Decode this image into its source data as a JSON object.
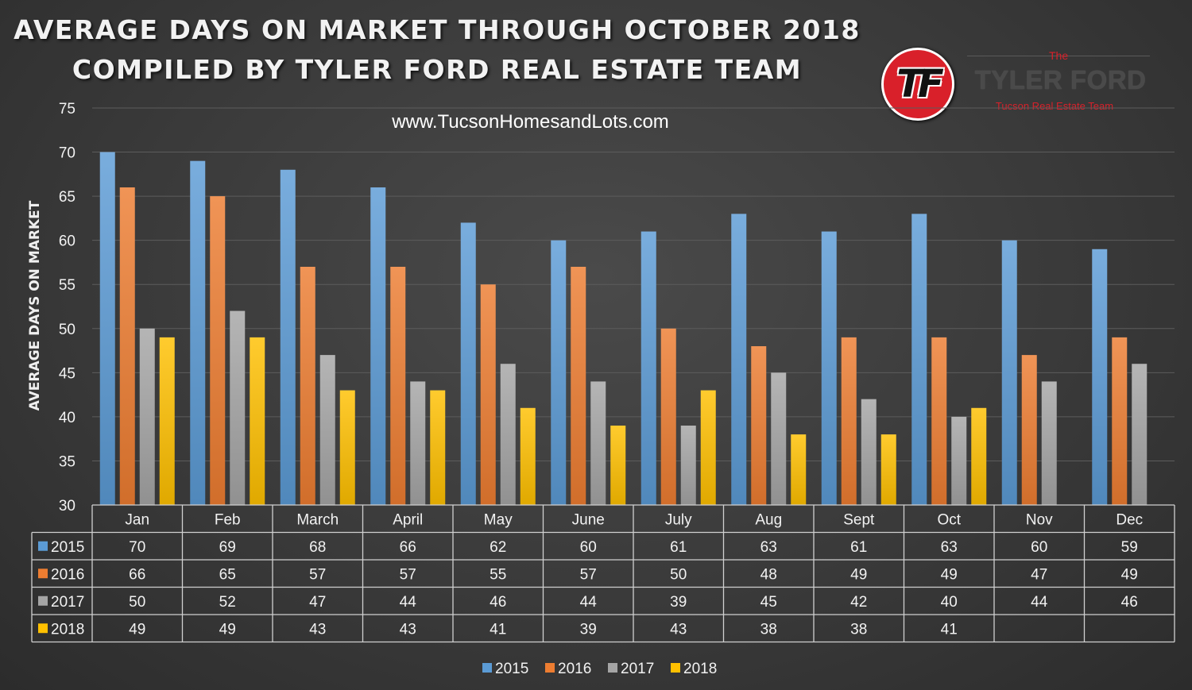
{
  "header": {
    "title_line1": "AVERAGE DAYS ON MARKET THROUGH OCTOBER 2018",
    "title_line2": "COMPILED BY TYLER FORD REAL ESTATE TEAM",
    "website": "www.TucsonHomesandLots.com"
  },
  "logo": {
    "monogram": "TF",
    "prefix": "The",
    "name": "TYLER FORD",
    "tagline": "Tucson Real Estate Team"
  },
  "chart_data": {
    "type": "bar",
    "title": "AVERAGE DAYS ON MARKET THROUGH OCTOBER 2018",
    "ylabel": "AVERAGE DAYS ON MARKET",
    "xlabel": "",
    "ylim": [
      30,
      75
    ],
    "yticks": [
      30,
      35,
      40,
      45,
      50,
      55,
      60,
      65,
      70,
      75
    ],
    "grid": true,
    "legend_position": "bottom",
    "categories": [
      "Jan",
      "Feb",
      "March",
      "April",
      "May",
      "June",
      "July",
      "Aug",
      "Sept",
      "Oct",
      "Nov",
      "Dec"
    ],
    "series": [
      {
        "name": "2015",
        "color": "#5b9bd5",
        "values": [
          70,
          69,
          68,
          66,
          62,
          60,
          61,
          63,
          61,
          63,
          60,
          59
        ]
      },
      {
        "name": "2016",
        "color": "#ed7d31",
        "values": [
          66,
          65,
          57,
          57,
          55,
          57,
          50,
          48,
          49,
          49,
          47,
          49
        ]
      },
      {
        "name": "2017",
        "color": "#a5a5a5",
        "values": [
          50,
          52,
          47,
          44,
          46,
          44,
          39,
          45,
          42,
          40,
          44,
          46
        ]
      },
      {
        "name": "2018",
        "color": "#ffc000",
        "values": [
          49,
          49,
          43,
          43,
          41,
          39,
          43,
          38,
          38,
          41,
          null,
          null
        ]
      }
    ]
  }
}
